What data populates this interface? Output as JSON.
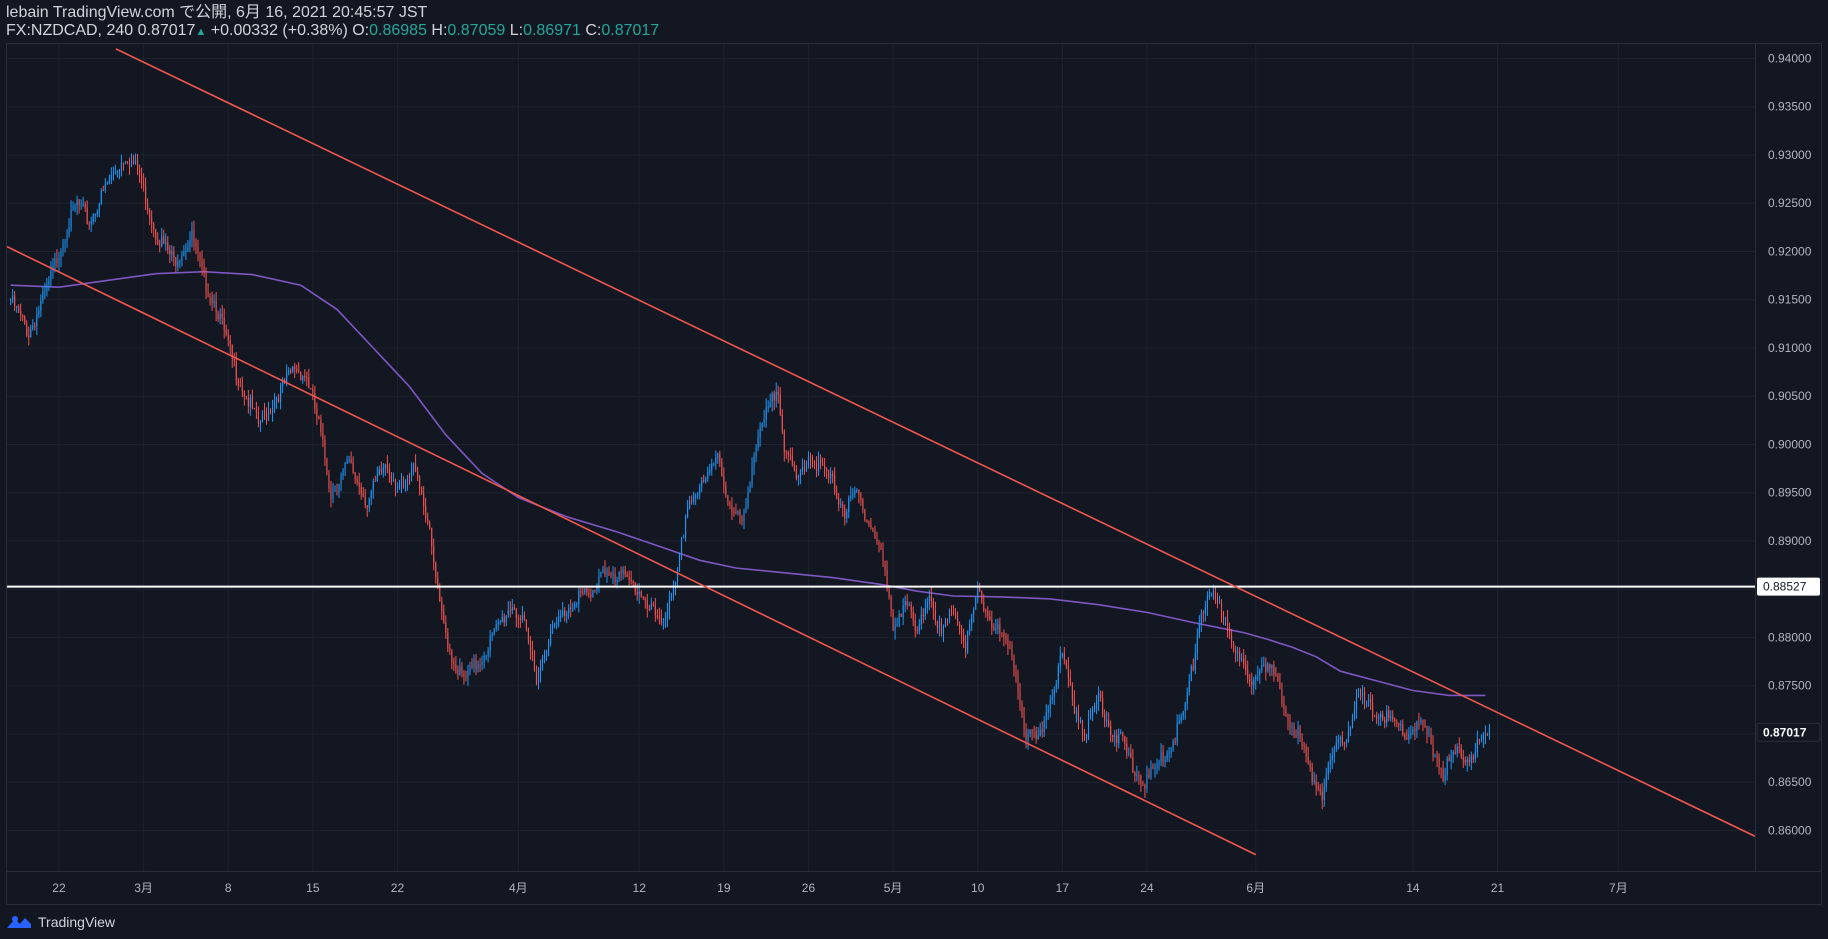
{
  "header": {
    "publisher": "lebain TradingView.com で公開, 6月 16, 2021 20:45:57 JST",
    "symbol": "FX:NZDCAD, 240",
    "last": "0.87017",
    "arrow": "▲",
    "change": "+0.00332 (+0.38%)",
    "o_label": "O:",
    "o_value": "0.86985",
    "h_label": "H:",
    "h_value": "0.87059",
    "l_label": "L:",
    "l_value": "0.86971",
    "c_label": "C:",
    "c_value": "0.87017"
  },
  "footer": {
    "brand": "TradingView",
    "logo_icon": "tradingview-logo-icon"
  },
  "colors": {
    "background": "#131722",
    "grid": "#1e222d",
    "text": "#b2b5be",
    "up": "#2196f3",
    "down": "#ef5350",
    "trendline": "#f0574f",
    "ma": "#7e57c2",
    "hline": "#ffffff",
    "header_value": "#26a69a"
  },
  "chart_data": {
    "type": "candlestick",
    "symbol": "FX:NZDCAD",
    "interval": "240",
    "y_axis": {
      "range": [
        0.8558,
        0.9415
      ],
      "ticks": [
        "0.94000",
        "0.93500",
        "0.93000",
        "0.92500",
        "0.92000",
        "0.91500",
        "0.91000",
        "0.90500",
        "0.90000",
        "0.89500",
        "0.89000",
        "0.88500",
        "0.88000",
        "0.87500",
        "0.87000",
        "0.86500",
        "0.86000"
      ],
      "price_labels": [
        {
          "label": "0.88527",
          "value": 0.88527,
          "style": "horizontal-line"
        },
        {
          "label": "0.87017",
          "value": 0.87017,
          "style": "last-price"
        }
      ]
    },
    "x_axis": {
      "range_days": [
        -0.3,
        144.3
      ],
      "tick_labels": [
        {
          "label": "22",
          "day": 4
        },
        {
          "label": "3月",
          "day": 11
        },
        {
          "label": "8",
          "day": 18
        },
        {
          "label": "15",
          "day": 25
        },
        {
          "label": "22",
          "day": 32
        },
        {
          "label": "4月",
          "day": 42
        },
        {
          "label": "12",
          "day": 52
        },
        {
          "label": "19",
          "day": 59
        },
        {
          "label": "26",
          "day": 66
        },
        {
          "label": "5月",
          "day": 73
        },
        {
          "label": "10",
          "day": 80
        },
        {
          "label": "17",
          "day": 87
        },
        {
          "label": "24",
          "day": 94
        },
        {
          "label": "6月",
          "day": 103
        },
        {
          "label": "14",
          "day": 116
        },
        {
          "label": "21",
          "day": 123
        },
        {
          "label": "7月",
          "day": 133
        }
      ]
    },
    "price_path": [
      [
        0,
        0.915
      ],
      [
        1.5,
        0.9115
      ],
      [
        3,
        0.916
      ],
      [
        4.5,
        0.922
      ],
      [
        5.5,
        0.925
      ],
      [
        6.5,
        0.923
      ],
      [
        8,
        0.927
      ],
      [
        9.5,
        0.93
      ],
      [
        10.5,
        0.9285
      ],
      [
        12,
        0.922
      ],
      [
        13.5,
        0.919
      ],
      [
        15,
        0.9215
      ],
      [
        16,
        0.917
      ],
      [
        17,
        0.9145
      ],
      [
        18.5,
        0.908
      ],
      [
        19.5,
        0.905
      ],
      [
        20.5,
        0.902
      ],
      [
        22,
        0.905
      ],
      [
        23.5,
        0.908
      ],
      [
        24.5,
        0.907
      ],
      [
        25.5,
        0.902
      ],
      [
        26.5,
        0.895
      ],
      [
        28,
        0.898
      ],
      [
        29.5,
        0.894
      ],
      [
        31,
        0.898
      ],
      [
        32.5,
        0.895
      ],
      [
        33.5,
        0.898
      ],
      [
        34.5,
        0.892
      ],
      [
        35.5,
        0.883
      ],
      [
        36.5,
        0.878
      ],
      [
        37.5,
        0.8755
      ],
      [
        39,
        0.878
      ],
      [
        40.5,
        0.8815
      ],
      [
        41.5,
        0.8835
      ],
      [
        42.5,
        0.881
      ],
      [
        43.5,
        0.876
      ],
      [
        44.5,
        0.88
      ],
      [
        46,
        0.883
      ],
      [
        47,
        0.8845
      ],
      [
        48,
        0.884
      ],
      [
        49,
        0.8875
      ],
      [
        50,
        0.8855
      ],
      [
        51,
        0.887
      ],
      [
        52.5,
        0.883
      ],
      [
        54,
        0.882
      ],
      [
        55,
        0.885
      ],
      [
        56,
        0.894
      ],
      [
        57.5,
        0.896
      ],
      [
        58.5,
        0.8995
      ],
      [
        59.5,
        0.893
      ],
      [
        60.5,
        0.892
      ],
      [
        61.5,
        0.899
      ],
      [
        62.5,
        0.903
      ],
      [
        63.5,
        0.906
      ],
      [
        64,
        0.9
      ],
      [
        65,
        0.896
      ],
      [
        66,
        0.899
      ],
      [
        67,
        0.8975
      ],
      [
        68,
        0.896
      ],
      [
        69,
        0.893
      ],
      [
        70,
        0.895
      ],
      [
        71,
        0.892
      ],
      [
        72,
        0.889
      ],
      [
        73,
        0.881
      ],
      [
        74,
        0.884
      ],
      [
        75,
        0.88
      ],
      [
        76,
        0.885
      ],
      [
        77,
        0.88
      ],
      [
        78,
        0.883
      ],
      [
        79,
        0.879
      ],
      [
        80,
        0.8845
      ],
      [
        81,
        0.882
      ],
      [
        82,
        0.88
      ],
      [
        83,
        0.877
      ],
      [
        84,
        0.87
      ],
      [
        85,
        0.869
      ],
      [
        86,
        0.874
      ],
      [
        87,
        0.878
      ],
      [
        88,
        0.873
      ],
      [
        89,
        0.87
      ],
      [
        90,
        0.874
      ],
      [
        91,
        0.8705
      ],
      [
        92,
        0.869
      ],
      [
        93,
        0.866
      ],
      [
        94,
        0.865
      ],
      [
        95,
        0.867
      ],
      [
        96,
        0.869
      ],
      [
        97,
        0.872
      ],
      [
        97.8,
        0.877
      ],
      [
        98.5,
        0.883
      ],
      [
        99.5,
        0.884
      ],
      [
        100.5,
        0.882
      ],
      [
        101.5,
        0.878
      ],
      [
        102.5,
        0.875
      ],
      [
        103.5,
        0.878
      ],
      [
        104.5,
        0.876
      ],
      [
        105.5,
        0.872
      ],
      [
        106.5,
        0.87
      ],
      [
        107.5,
        0.866
      ],
      [
        108.5,
        0.864
      ],
      [
        109.5,
        0.868
      ],
      [
        110.5,
        0.87
      ],
      [
        111.5,
        0.874
      ],
      [
        112.5,
        0.8725
      ],
      [
        113.5,
        0.872
      ],
      [
        114.5,
        0.871
      ],
      [
        115.5,
        0.87
      ],
      [
        116.5,
        0.871
      ],
      [
        117.5,
        0.869
      ],
      [
        118.5,
        0.866
      ],
      [
        119.5,
        0.868
      ],
      [
        120.5,
        0.8675
      ],
      [
        121.5,
        0.869
      ],
      [
        122.5,
        0.87
      ]
    ],
    "moving_average": {
      "color": "#7e57c2",
      "points": [
        [
          0,
          0.9165
        ],
        [
          4,
          0.9163
        ],
        [
          8,
          0.917
        ],
        [
          12,
          0.9177
        ],
        [
          16,
          0.9179
        ],
        [
          20,
          0.9176
        ],
        [
          24,
          0.9165
        ],
        [
          27,
          0.914
        ],
        [
          30,
          0.91
        ],
        [
          33,
          0.906
        ],
        [
          36,
          0.901
        ],
        [
          39,
          0.897
        ],
        [
          42,
          0.8945
        ],
        [
          46,
          0.8925
        ],
        [
          50,
          0.891
        ],
        [
          54,
          0.8893
        ],
        [
          57,
          0.888
        ],
        [
          60,
          0.8872
        ],
        [
          64,
          0.8867
        ],
        [
          68,
          0.8862
        ],
        [
          72,
          0.8855
        ],
        [
          75,
          0.8848
        ],
        [
          78,
          0.8843
        ],
        [
          82,
          0.8842
        ],
        [
          86,
          0.884
        ],
        [
          90,
          0.8834
        ],
        [
          94,
          0.8826
        ],
        [
          98,
          0.8815
        ],
        [
          100,
          0.881
        ],
        [
          102,
          0.8805
        ],
        [
          104,
          0.8798
        ],
        [
          106,
          0.879
        ],
        [
          108,
          0.878
        ],
        [
          110,
          0.8765
        ],
        [
          113,
          0.8755
        ],
        [
          116,
          0.8745
        ],
        [
          119,
          0.874
        ],
        [
          122,
          0.874
        ]
      ]
    },
    "drawings": {
      "horizontal_line": {
        "value": 0.88527,
        "color": "#ffffff"
      },
      "trendlines": [
        {
          "from": [
            8.7,
            0.941
          ],
          "to": [
            144.3,
            0.8594
          ],
          "color": "#f0574f"
        },
        {
          "from": [
            -0.3,
            0.9205
          ],
          "to": [
            103,
            0.8575
          ],
          "color": "#f0574f"
        }
      ]
    }
  }
}
